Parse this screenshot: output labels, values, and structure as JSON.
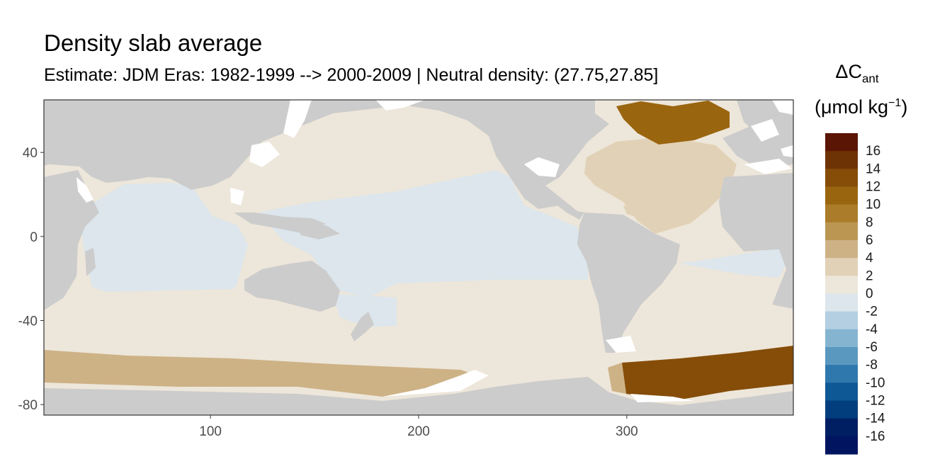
{
  "title": "Density slab average",
  "subtitle": "Estimate: JDM Eras: 1982-1999 --> 2000-2009 | Neutral density: (27.75,27.85]",
  "chart_data": {
    "type": "heatmap",
    "x_ticks": [
      "100",
      "200",
      "300"
    ],
    "y_ticks": [
      "40",
      "0",
      "-40",
      "-80"
    ],
    "xlim": [
      20,
      380
    ],
    "ylim": [
      -85,
      65
    ],
    "legend": {
      "title_symbol": "ΔC",
      "title_subscript": "ant",
      "unit_prefix": "(μmol kg",
      "unit_superscript": "−1",
      "unit_suffix": ")",
      "labels": [
        "16",
        "14",
        "12",
        "10",
        "8",
        "6",
        "4",
        "2",
        "0",
        "-2",
        "-4",
        "-6",
        "-8",
        "-10",
        "-12",
        "-14",
        "-16"
      ],
      "colors": [
        "#5a1505",
        "#6e3304",
        "#854d08",
        "#9a650f",
        "#ab7c29",
        "#bb9652",
        "#cdb286",
        "#e1d1b6",
        "#ede6da",
        "#dce6ec",
        "#b3cfe1",
        "#85b4d1",
        "#5a98c0",
        "#2f78ad",
        "#0f5896",
        "#023e7d",
        "#001e62",
        "#001460"
      ],
      "placement": "right"
    },
    "regions": [
      {
        "name": "pacific-north",
        "value": 1
      },
      {
        "name": "pacific-equatorial",
        "value": -1
      },
      {
        "name": "indian-ocean",
        "value": -1
      },
      {
        "name": "southern-ocean-band",
        "value": 1
      },
      {
        "name": "atlantic-north-subpolar",
        "value": 11
      },
      {
        "name": "atlantic-north-subtropical",
        "value": 4
      },
      {
        "name": "atlantic-south",
        "value": 1
      },
      {
        "name": "antarctic-pacific-shelf",
        "value": 5
      },
      {
        "name": "weddell-sea",
        "value": 13
      }
    ],
    "colors": {
      "land": "#cccccc",
      "no_data": "#ffffff",
      "frame": "#333333"
    }
  }
}
